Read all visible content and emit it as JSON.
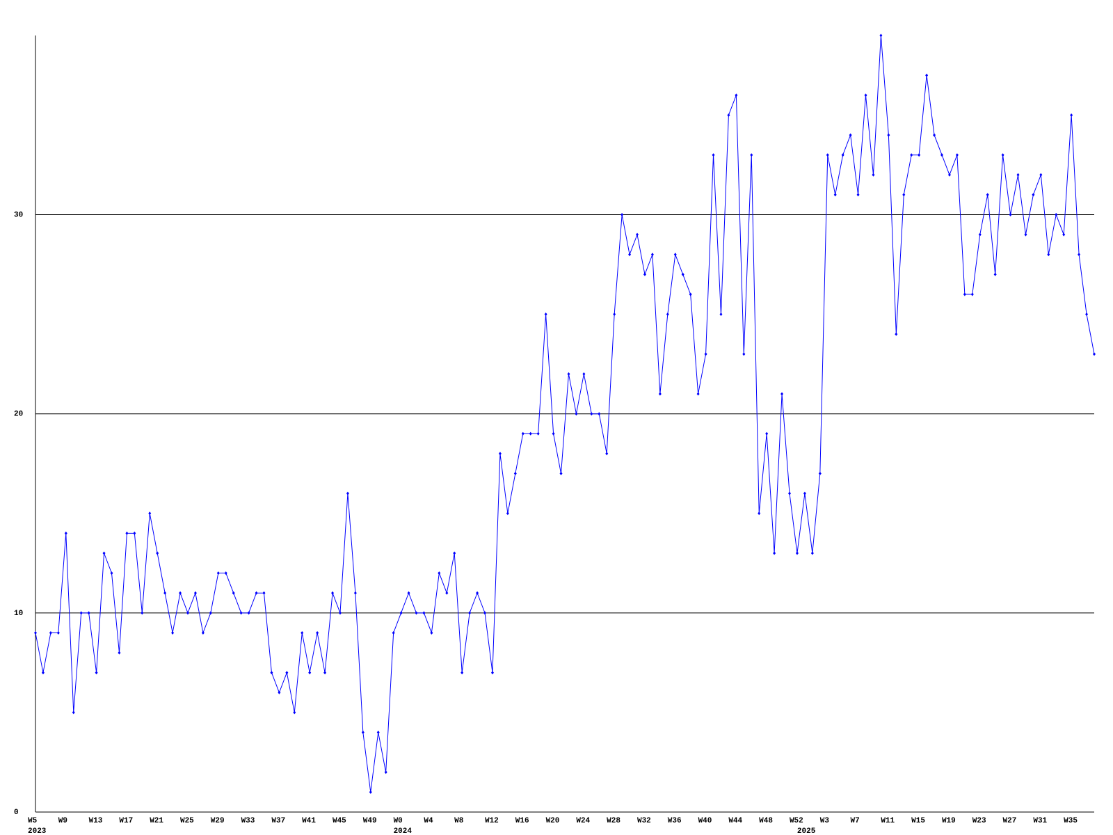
{
  "chart_data": {
    "type": "line",
    "categories": [
      "W5",
      null,
      null,
      null,
      "W9",
      null,
      null,
      null,
      "W13",
      null,
      null,
      null,
      "W17",
      null,
      null,
      null,
      "W21",
      null,
      null,
      null,
      "W25",
      null,
      null,
      null,
      "W29",
      null,
      null,
      null,
      "W33",
      null,
      null,
      null,
      "W37",
      null,
      null,
      null,
      "W41",
      null,
      null,
      null,
      "W45",
      null,
      null,
      null,
      "W49",
      null,
      null,
      null,
      "W0",
      null,
      null,
      null,
      "W4",
      null,
      null,
      null,
      "W8",
      null,
      null,
      null,
      "W12",
      null,
      null,
      null,
      "W16",
      null,
      null,
      null,
      "W20",
      null,
      null,
      null,
      "W24",
      null,
      null,
      null,
      "W28",
      null,
      null,
      null,
      "W32",
      null,
      null,
      null,
      "W36",
      null,
      null,
      null,
      "W40",
      null,
      null,
      null,
      "W44",
      null,
      null,
      null,
      "W48",
      null,
      null,
      null,
      "W52",
      null,
      null,
      null,
      "W3",
      null,
      null,
      null,
      "W7",
      null,
      null,
      null,
      "W11",
      null,
      null,
      null,
      "W15",
      null,
      null,
      null,
      "W19",
      null,
      null,
      null,
      "W23",
      null,
      null,
      null,
      "W27",
      null,
      null,
      null,
      "W31",
      null,
      null,
      null,
      "W35",
      null,
      null,
      null
    ],
    "year_labels": [
      "2023",
      null,
      null,
      null,
      null,
      null,
      null,
      null,
      null,
      null,
      null,
      null,
      null,
      null,
      null,
      null,
      null,
      null,
      null,
      null,
      null,
      null,
      null,
      null,
      null,
      null,
      null,
      null,
      null,
      null,
      null,
      null,
      null,
      null,
      null,
      null,
      null,
      null,
      null,
      null,
      null,
      null,
      null,
      null,
      null,
      null,
      null,
      null,
      "2024",
      null,
      null,
      null,
      null,
      null,
      null,
      null,
      null,
      null,
      null,
      null,
      null,
      null,
      null,
      null,
      null,
      null,
      null,
      null,
      null,
      null,
      null,
      null,
      null,
      null,
      null,
      null,
      null,
      null,
      null,
      null,
      null,
      null,
      null,
      null,
      null,
      null,
      null,
      null,
      null,
      null,
      null,
      null,
      null,
      null,
      null,
      null,
      null,
      null,
      null,
      null,
      null,
      "2025",
      null,
      null,
      null,
      null,
      null,
      null,
      null,
      null,
      null,
      null,
      null,
      null,
      null,
      null,
      null,
      null,
      null,
      null,
      null,
      null,
      null,
      null,
      null,
      null,
      null,
      null,
      null,
      null,
      null,
      null,
      null,
      null,
      null,
      null,
      null,
      null,
      null,
      null
    ],
    "series": [
      {
        "color": "#0000ff",
        "values": [
          9,
          7,
          9,
          9,
          14,
          5,
          10,
          10,
          7,
          13,
          12,
          8,
          14,
          14,
          10,
          15,
          13,
          11,
          9,
          11,
          10,
          11,
          9,
          10,
          12,
          12,
          11,
          10,
          10,
          11,
          11,
          7,
          6,
          7,
          5,
          9,
          7,
          9,
          7,
          11,
          10,
          16,
          11,
          4,
          1,
          4,
          2,
          9,
          10,
          11,
          10,
          10,
          9,
          12,
          11,
          13,
          7,
          10,
          11,
          10,
          7,
          18,
          15,
          17,
          19,
          19,
          19,
          25,
          19,
          17,
          22,
          20,
          22,
          20,
          20,
          18,
          25,
          30,
          28,
          29,
          27,
          28,
          21,
          25,
          28,
          27,
          26,
          21,
          23,
          33,
          25,
          35,
          36,
          23,
          33,
          15,
          19,
          13,
          21,
          16,
          13,
          16,
          13,
          17,
          33,
          31,
          33,
          34,
          31,
          36,
          32,
          39,
          34,
          24,
          31,
          33,
          33,
          37,
          34,
          33,
          32,
          33,
          26,
          26,
          29,
          31,
          27,
          33,
          30,
          32,
          29,
          31,
          32,
          28,
          30,
          29,
          35,
          28,
          25,
          23
        ]
      }
    ],
    "ylim": [
      0,
      39
    ],
    "yticks": [
      0,
      10,
      20,
      30
    ],
    "grid": true
  }
}
